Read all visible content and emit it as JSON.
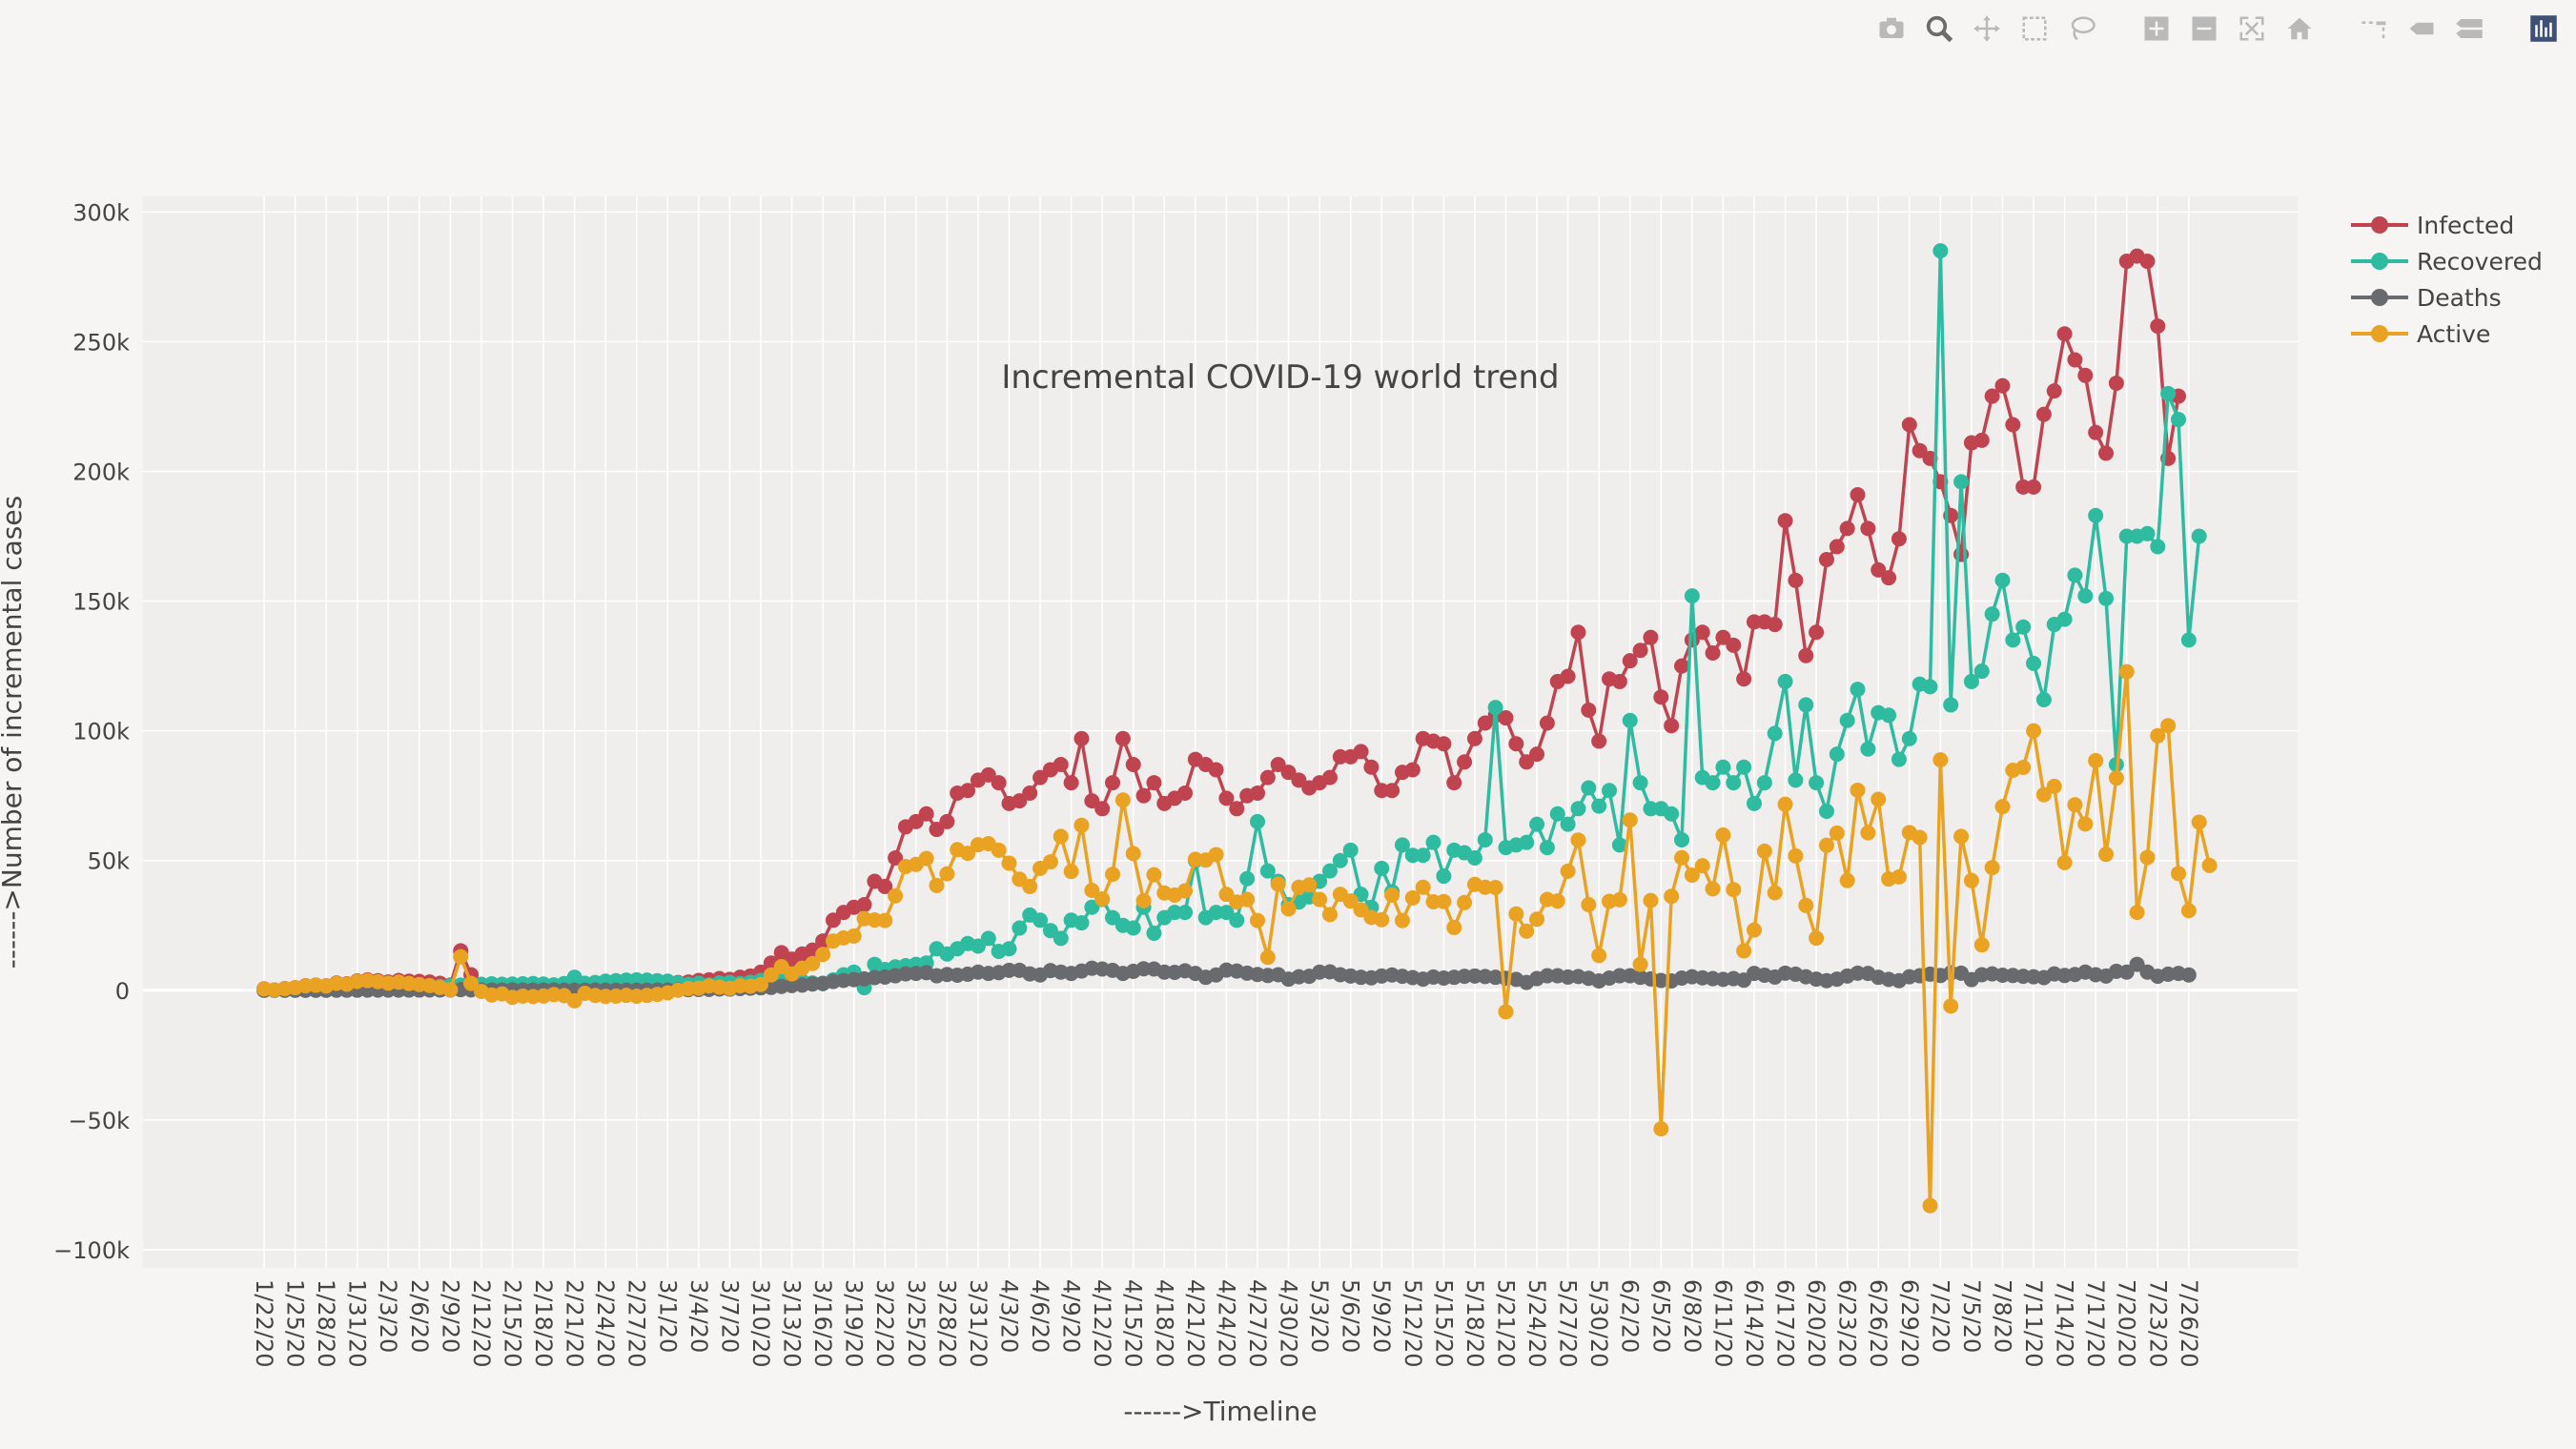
{
  "modebar": {
    "buttons": [
      {
        "icon": "camera-icon",
        "active": false
      },
      {
        "icon": "zoom-icon",
        "active": true
      },
      {
        "icon": "pan-icon",
        "active": false
      },
      {
        "icon": "box-select-icon",
        "active": false
      },
      {
        "icon": "lasso-select-icon",
        "active": false
      },
      {
        "icon": "zoom-in-icon",
        "active": false
      },
      {
        "icon": "zoom-out-icon",
        "active": false
      },
      {
        "icon": "autoscale-icon",
        "active": false
      },
      {
        "icon": "reset-axes-icon",
        "active": false
      },
      {
        "icon": "spike-lines-icon",
        "active": false
      },
      {
        "icon": "hover-closest-icon",
        "active": false
      },
      {
        "icon": "hover-compare-icon",
        "active": false
      },
      {
        "icon": "plotly-logo-icon",
        "active": false
      }
    ]
  },
  "colors": {
    "page_bg": "#f6f5f4",
    "plot_bg": "#efeeed",
    "grid": "#ffffff",
    "text": "#444444"
  },
  "chart_data": {
    "type": "line",
    "mode": "lines+markers",
    "title": "Incremental COVID-19 world trend",
    "xlabel": "------>Timeline",
    "ylabel": "------>Number of incremental cases",
    "ylim": [
      -107000,
      306000
    ],
    "y_ticks": [
      -100000,
      -50000,
      0,
      50000,
      100000,
      150000,
      200000,
      250000,
      300000
    ],
    "y_tick_labels": [
      "−100k",
      "−50k",
      "0",
      "50k",
      "100k",
      "150k",
      "200k",
      "250k",
      "300k"
    ],
    "x_start": "1/22/20",
    "x_tick_labels": [
      "1/22/20",
      "1/25/20",
      "1/28/20",
      "1/31/20",
      "2/3/20",
      "2/6/20",
      "2/9/20",
      "2/12/20",
      "2/15/20",
      "2/18/20",
      "2/21/20",
      "2/24/20",
      "2/27/20",
      "3/1/20",
      "3/4/20",
      "3/7/20",
      "3/10/20",
      "3/13/20",
      "3/16/20",
      "3/19/20",
      "3/22/20",
      "3/25/20",
      "3/28/20",
      "3/31/20",
      "4/3/20",
      "4/6/20",
      "4/9/20",
      "4/12/20",
      "4/15/20",
      "4/18/20",
      "4/21/20",
      "4/24/20",
      "4/27/20",
      "4/30/20",
      "5/3/20",
      "5/6/20",
      "5/9/20",
      "5/12/20",
      "5/15/20",
      "5/18/20",
      "5/21/20",
      "5/24/20",
      "5/27/20",
      "5/30/20",
      "6/2/20",
      "6/5/20",
      "6/8/20",
      "6/11/20",
      "6/14/20",
      "6/17/20",
      "6/20/20",
      "6/23/20",
      "6/26/20",
      "6/29/20",
      "7/2/20",
      "7/5/20",
      "7/8/20",
      "7/11/20",
      "7/14/20",
      "7/17/20",
      "7/20/20",
      "7/23/20",
      "7/26/20"
    ],
    "grid": true,
    "legend_position": "top-right outside plot",
    "series": [
      {
        "name": "Infected",
        "color": "#c0444f",
        "values": [
          555,
          100,
          650,
          1000,
          1750,
          2000,
          1700,
          2800,
          2500,
          3600,
          4000,
          3700,
          3200,
          3800,
          3500,
          3400,
          3200,
          2700,
          2000,
          15200,
          6000,
          2000,
          1000,
          700,
          600,
          400,
          300,
          300,
          600,
          600,
          1000,
          1600,
          1100,
          1200,
          1500,
          2000,
          1800,
          2000,
          2200,
          2600,
          3000,
          3200,
          3800,
          4000,
          4500,
          4200,
          5000,
          5500,
          7000,
          10500,
          14500,
          12000,
          14000,
          15500,
          19000,
          27000,
          30000,
          32000,
          33000,
          42000,
          40000,
          51000,
          63000,
          65000,
          68000,
          62000,
          65000,
          76000,
          77000,
          81000,
          83000,
          80000,
          72000,
          73000,
          76000,
          82000,
          85000,
          87000,
          80000,
          97000,
          73000,
          70000,
          80000,
          97000,
          87000,
          75000,
          80000,
          72000,
          74000,
          76000,
          89000,
          87000,
          85000,
          74000,
          70000,
          75000,
          76000,
          82000,
          87000,
          84000,
          81000,
          78000,
          80000,
          82000,
          90000,
          90000,
          92000,
          86000,
          77000,
          77000,
          84000,
          85000,
          97000,
          96000,
          95000,
          80000,
          88000,
          97000,
          103000,
          106000,
          105000,
          95000,
          88000,
          91000,
          103000,
          119000,
          121000,
          138000,
          108000,
          96000,
          120000,
          119000,
          127000,
          131000,
          136000,
          113000,
          102000,
          125000,
          135000,
          138000,
          130000,
          136000,
          133000,
          120000,
          142000,
          142000,
          141000,
          181000,
          158000,
          129000,
          138000,
          166000,
          171000,
          178000,
          191000,
          178000,
          162000,
          159000,
          174000,
          218000,
          208000,
          205000,
          196000,
          183000,
          168000,
          211000,
          212000,
          229000,
          233000,
          218000,
          194000,
          194000,
          222000,
          231000,
          253000,
          243000,
          237000,
          215000,
          207000,
          234000,
          281000,
          283000,
          281000,
          256000,
          205000,
          229000
        ]
      },
      {
        "name": "Recovered",
        "color": "#2fbba0",
        "values": [
          0,
          0,
          10,
          20,
          30,
          40,
          50,
          80,
          110,
          150,
          200,
          300,
          400,
          600,
          800,
          1100,
          1300,
          1500,
          1700,
          2000,
          2200,
          2300,
          2500,
          2300,
          2400,
          2500,
          2600,
          2400,
          2100,
          2600,
          5000,
          2700,
          3000,
          3500,
          3700,
          3900,
          4000,
          3900,
          3700,
          3500,
          2800,
          2300,
          2700,
          2000,
          2800,
          3000,
          2600,
          3100,
          3800,
          3500,
          3900,
          3900,
          3500,
          2800,
          2500,
          4000,
          6000,
          7000,
          1000,
          10000,
          8000,
          9000,
          9500,
          10000,
          10500,
          16000,
          14000,
          16000,
          18000,
          17000,
          20000,
          15000,
          16000,
          24000,
          29000,
          27000,
          23000,
          20000,
          27000,
          26000,
          32000,
          35000,
          28000,
          25000,
          24000,
          32000,
          22000,
          28000,
          30000,
          30000,
          50000,
          28000,
          30000,
          30000,
          27000,
          43000,
          65000,
          46000,
          42000,
          33000,
          34000,
          36000,
          42000,
          46000,
          50000,
          54000,
          37000,
          32000,
          47000,
          38000,
          56000,
          52000,
          52000,
          57000,
          44000,
          54000,
          53000,
          51000,
          58000,
          109000,
          55000,
          56000,
          57000,
          64000,
          55000,
          68000,
          64000,
          70000,
          78000,
          71000,
          77000,
          56000,
          104000,
          80000,
          70000,
          70000,
          68000,
          58000,
          152000,
          82000,
          80000,
          86000,
          80000,
          86000,
          72000,
          80000,
          99000,
          119000,
          81000,
          110000,
          80000,
          69000,
          91000,
          104000,
          116000,
          93000,
          107000,
          106000,
          89000,
          97000,
          118000,
          117000,
          285000,
          110000,
          196000,
          119000,
          123000,
          145000,
          158000,
          135000,
          140000,
          126000,
          112000,
          141000,
          143000,
          160000,
          152000,
          183000,
          151000,
          87000,
          175000,
          175000,
          176000,
          171000,
          230000,
          220000,
          135000,
          175000
        ]
      },
      {
        "name": "Deaths",
        "color": "#696a6e",
        "values": [
          17,
          1,
          8,
          16,
          14,
          26,
          26,
          42,
          46,
          45,
          57,
          64,
          65,
          73,
          86,
          89,
          97,
          108,
          97,
          255,
          143,
          142,
          106,
          98,
          139,
          112,
          100,
          108,
          150,
          71,
          64,
          77,
          98,
          45,
          49,
          59,
          68,
          76,
          89,
          104,
          190,
          246,
          294,
          340,
          470,
          460,
          670,
          810,
          960,
          1100,
          1500,
          1800,
          2000,
          2400,
          2700,
          3400,
          3800,
          4100,
          4400,
          4900,
          5100,
          5600,
          6300,
          6500,
          6800,
          5600,
          6100,
          5800,
          6200,
          7000,
          6500,
          6800,
          7700,
          7700,
          6300,
          5900,
          7600,
          7000,
          6500,
          7400,
          8500,
          8200,
          7700,
          6500,
          7300,
          8300,
          8200,
          7000,
          6900,
          7500,
          6500,
          5000,
          5900,
          7800,
          7400,
          6600,
          6100,
          5700,
          6000,
          4300,
          5200,
          5400,
          7000,
          7100,
          6000,
          5500,
          5000,
          4800,
          5500,
          5900,
          5400,
          4900,
          4300,
          5100,
          4700,
          5000,
          5400,
          5500,
          5300,
          5000,
          4600,
          4200,
          3000,
          4500,
          5600,
          5600,
          5100,
          5300,
          4600,
          3600,
          4700,
          5600,
          5600,
          5000,
          4400,
          3800,
          3600,
          4700,
          5200,
          4800,
          4500,
          4200,
          4500,
          3900,
          6500,
          5800,
          5100,
          6600,
          6200,
          5200,
          4300,
          3700,
          4300,
          5500,
          6600,
          6500,
          5000,
          4200,
          3700,
          5200,
          5600,
          6200,
          5700,
          6700,
          6600,
          4100,
          6000,
          6300,
          5800,
          5700,
          5400,
          5200,
          4900,
          6300,
          5700,
          6100,
          7000,
          6000,
          5500,
          7300,
          7000,
          10000,
          7000,
          5400,
          6200,
          6500,
          5900
        ]
      },
      {
        "name": "Active",
        "color": "#e9a222",
        "values": [
          538,
          99,
          632,
          974,
          1706,
          1934,
          1624,
          2678,
          2344,
          3405,
          3743,
          3336,
          2735,
          3127,
          2614,
          2211,
          1803,
          1092,
          203,
          12945,
          2657,
          -442,
          -1806,
          -1398,
          -2739,
          -2212,
          -2400,
          -2208,
          -1650,
          -2071,
          -4064,
          -1177,
          -1998,
          -2345,
          -2249,
          -1959,
          -2268,
          -1976,
          -1589,
          -1004,
          10,
          657,
          806,
          1660,
          1230,
          740,
          1730,
          1590,
          2240,
          5900,
          9100,
          6300,
          8500,
          10300,
          13800,
          19000,
          20200,
          20900,
          27600,
          27100,
          26900,
          36400,
          47700,
          48500,
          50800,
          40400,
          44900,
          54200,
          52800,
          56100,
          56500,
          54000,
          49000,
          42800,
          40000,
          47000,
          49500,
          59300,
          45800,
          63600,
          38500,
          35200,
          44700,
          73300,
          52700,
          34500,
          44500,
          37500,
          36700,
          38300,
          50500,
          50200,
          52300,
          37000,
          34000,
          35000,
          26900,
          12700,
          40900,
          31400,
          39700,
          40600,
          35000,
          29200,
          37000,
          34400,
          31000,
          28100,
          27200,
          36700,
          26900,
          35600,
          39700,
          34100,
          34200,
          24200,
          33800,
          40800,
          39700,
          39600,
          -8300,
          29400,
          22800,
          27400,
          35000,
          34400,
          45900,
          57900,
          33000,
          13400,
          34300,
          34900,
          65600,
          10000,
          34600,
          -53400,
          36200,
          51100,
          44400,
          48000,
          39100,
          59800,
          38800,
          15200,
          23200,
          53600,
          37600,
          71700,
          51800,
          32700,
          20100,
          55900,
          60600,
          42300,
          77100,
          60700,
          73600,
          42900,
          43700,
          60800,
          58900,
          -83000,
          88800,
          -6100,
          59300,
          42300,
          17500,
          47300,
          70800,
          84800,
          85900,
          100000,
          75400,
          78600,
          49200,
          71500,
          64100,
          88500,
          52400,
          81800,
          122800,
          30000,
          51200,
          98100,
          102000,
          45000,
          30700,
          64800,
          48100
        ]
      }
    ]
  }
}
